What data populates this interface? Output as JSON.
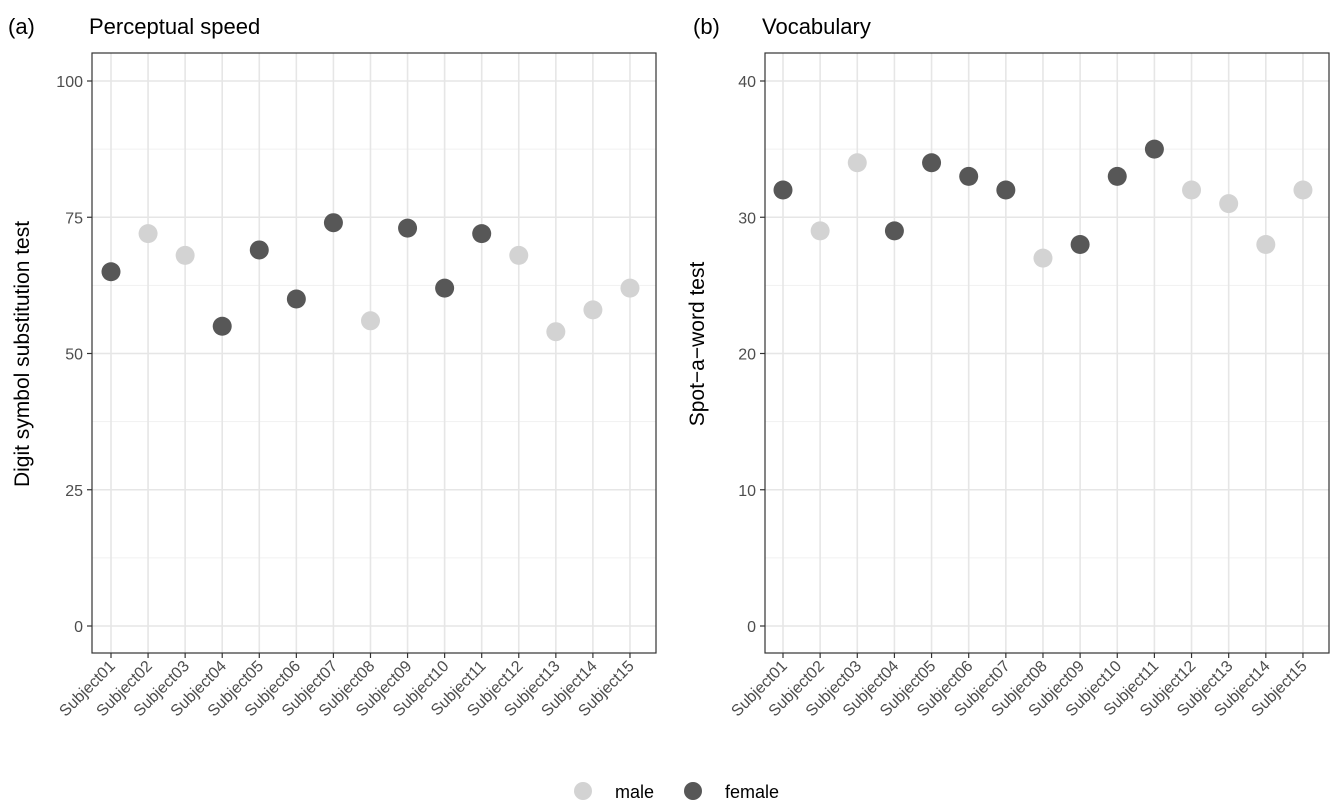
{
  "chart_data": [
    {
      "type": "scatter",
      "tag": "(a)",
      "title": "Perceptual speed",
      "xlabel": "",
      "ylabel": "Digit symbol substitution test",
      "ylim": [
        0,
        100
      ],
      "yticks": [
        "0",
        "25",
        "50",
        "75",
        "100"
      ],
      "categories": [
        "Subject01",
        "Subject02",
        "Subject03",
        "Subject04",
        "Subject05",
        "Subject06",
        "Subject07",
        "Subject08",
        "Subject09",
        "Subject10",
        "Subject11",
        "Subject12",
        "Subject13",
        "Subject14",
        "Subject15"
      ],
      "values": [
        65,
        72,
        68,
        55,
        69,
        60,
        74,
        56,
        73,
        62,
        72,
        68,
        54,
        58,
        62
      ],
      "groups": [
        "female",
        "male",
        "male",
        "female",
        "female",
        "female",
        "female",
        "male",
        "female",
        "female",
        "female",
        "male",
        "male",
        "male",
        "male"
      ],
      "grid": true
    },
    {
      "type": "scatter",
      "tag": "(b)",
      "title": "Vocabulary",
      "xlabel": "",
      "ylabel": "Spot−a−word test",
      "ylim": [
        0,
        40
      ],
      "yticks": [
        "0",
        "10",
        "20",
        "30",
        "40"
      ],
      "categories": [
        "Subject01",
        "Subject02",
        "Subject03",
        "Subject04",
        "Subject05",
        "Subject06",
        "Subject07",
        "Subject08",
        "Subject09",
        "Subject10",
        "Subject11",
        "Subject12",
        "Subject13",
        "Subject14",
        "Subject15"
      ],
      "values": [
        32,
        29,
        34,
        29,
        34,
        33,
        32,
        27,
        28,
        33,
        35,
        32,
        31,
        28,
        32
      ],
      "groups": [
        "female",
        "male",
        "male",
        "female",
        "female",
        "female",
        "female",
        "male",
        "female",
        "female",
        "female",
        "male",
        "male",
        "male",
        "male"
      ],
      "grid": true
    }
  ],
  "legend": {
    "position": "bottom",
    "items": [
      {
        "key": "male",
        "label": "male",
        "color": "#d3d3d3"
      },
      {
        "key": "female",
        "label": "female",
        "color": "#575757"
      }
    ]
  }
}
